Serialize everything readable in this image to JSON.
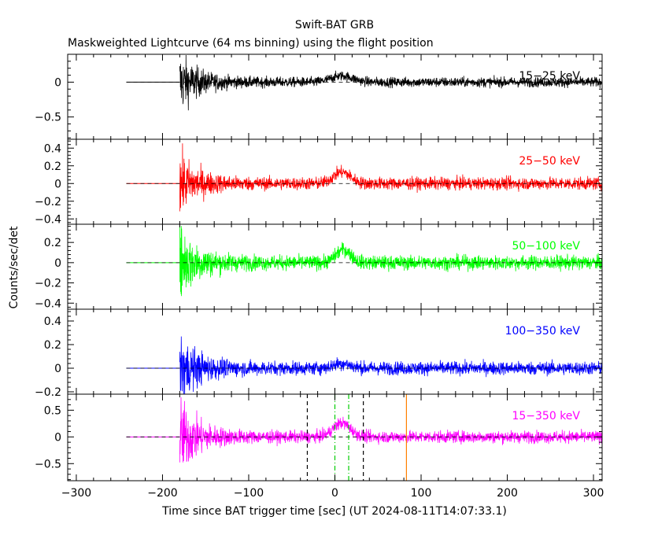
{
  "figure": {
    "title": "Swift-BAT GRB",
    "subtitle": "Maskweighted Lightcurve (64 ms binning) using the flight position",
    "ylabel": "Counts/sec/det",
    "xlabel": "Time since BAT trigger time [sec] (UT 2024-08-11T14:07:33.1)"
  },
  "chart_data": [
    {
      "type": "line",
      "series": [
        {
          "name": "15-25 keV",
          "color": "#000000"
        }
      ],
      "xlim": [
        -310,
        310
      ],
      "ylim": [
        -0.82,
        0.4
      ],
      "yticks": [
        -0.5,
        0
      ],
      "yticklabels": [
        "-0.5",
        "0"
      ],
      "baseline_start": -242,
      "onset": -180,
      "noise_initial": 0.32,
      "noise_steady": 0.05,
      "bump": {
        "center": 8,
        "width": 18,
        "height": 0.09
      },
      "flat_value": 0
    },
    {
      "type": "line",
      "series": [
        {
          "name": "25-50 keV",
          "color": "#ff0000"
        }
      ],
      "xlim": [
        -310,
        310
      ],
      "ylim": [
        -0.46,
        0.5
      ],
      "yticks": [
        -0.4,
        -0.2,
        0,
        0.2,
        0.4
      ],
      "yticklabels": [
        "-0.4",
        "-0.2",
        "0",
        "0.2",
        "0.4"
      ],
      "baseline_start": -242,
      "onset": -180,
      "noise_initial": 0.26,
      "noise_steady": 0.05,
      "bump": {
        "center": 8,
        "width": 14,
        "height": 0.13
      },
      "flat_value": 0
    },
    {
      "type": "line",
      "series": [
        {
          "name": "50-100 keV",
          "color": "#00ff00"
        }
      ],
      "xlim": [
        -310,
        310
      ],
      "ylim": [
        -0.46,
        0.38
      ],
      "yticks": [
        -0.4,
        -0.2,
        0,
        0.2
      ],
      "yticklabels": [
        "-0.4",
        "-0.2",
        "0",
        "0.2"
      ],
      "baseline_start": -242,
      "onset": -180,
      "noise_initial": 0.28,
      "noise_steady": 0.05,
      "bump": {
        "center": 10,
        "width": 12,
        "height": 0.13
      },
      "flat_value": 0
    },
    {
      "type": "line",
      "series": [
        {
          "name": "100-350 keV",
          "color": "#0000ff"
        }
      ],
      "xlim": [
        -310,
        310
      ],
      "ylim": [
        -0.22,
        0.5
      ],
      "yticks": [
        -0.2,
        0,
        0.2,
        0.4
      ],
      "yticklabels": [
        "-0.2",
        "0",
        "0.2",
        "0.4"
      ],
      "baseline_start": -242,
      "onset": -180,
      "noise_initial": 0.22,
      "noise_steady": 0.04,
      "bump": {
        "center": 8,
        "width": 14,
        "height": 0.04
      },
      "flat_value": 0
    },
    {
      "type": "line",
      "series": [
        {
          "name": "15-350 keV",
          "color": "#ff00ff"
        }
      ],
      "xlim": [
        -310,
        310
      ],
      "ylim": [
        -0.82,
        0.8
      ],
      "yticks": [
        -0.5,
        0,
        0.5
      ],
      "yticklabels": [
        "-0.5",
        "0",
        "0.5"
      ],
      "xticks": [
        -300,
        -200,
        -100,
        0,
        100,
        200,
        300
      ],
      "xticklabels": [
        "-300",
        "-200",
        "-100",
        "0",
        "100",
        "200",
        "300"
      ],
      "baseline_start": -242,
      "onset": -180,
      "noise_initial": 0.55,
      "noise_steady": 0.08,
      "bump": {
        "center": 8,
        "width": 14,
        "height": 0.26
      },
      "flat_value": 0,
      "vlines": [
        {
          "x": -32,
          "color": "#000000",
          "style": "dashed"
        },
        {
          "x": 33,
          "color": "#000000",
          "style": "dashed"
        },
        {
          "x": 0,
          "color": "#00cc00",
          "style": "dashdot"
        },
        {
          "x": 16,
          "color": "#00cc00",
          "style": "dashdot"
        },
        {
          "x": 83,
          "color": "#ff8000",
          "style": "solid"
        }
      ]
    }
  ]
}
